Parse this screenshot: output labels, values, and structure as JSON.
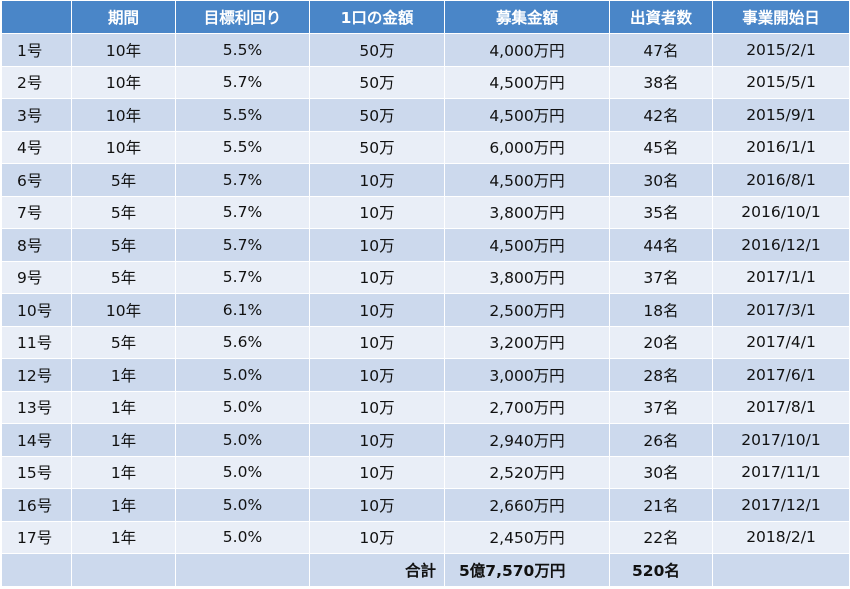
{
  "table": {
    "headers": [
      "",
      "期間",
      "目標利回り",
      "1口の金額",
      "募集金額",
      "出資者数",
      "事業開始日"
    ],
    "rows": [
      [
        "1号",
        "10年",
        "5.5%",
        "50万",
        "4,000万円",
        "47名",
        "2015/2/1"
      ],
      [
        "2号",
        "10年",
        "5.7%",
        "50万",
        "4,500万円",
        "38名",
        "2015/5/1"
      ],
      [
        "3号",
        "10年",
        "5.5%",
        "50万",
        "4,500万円",
        "42名",
        "2015/9/1"
      ],
      [
        "4号",
        "10年",
        "5.5%",
        "50万",
        "6,000万円",
        "45名",
        "2016/1/1"
      ],
      [
        "6号",
        "5年",
        "5.7%",
        "10万",
        "4,500万円",
        "30名",
        "2016/8/1"
      ],
      [
        "7号",
        "5年",
        "5.7%",
        "10万",
        "3,800万円",
        "35名",
        "2016/10/1"
      ],
      [
        "8号",
        "5年",
        "5.7%",
        "10万",
        "4,500万円",
        "44名",
        "2016/12/1"
      ],
      [
        "9号",
        "5年",
        "5.7%",
        "10万",
        "3,800万円",
        "37名",
        "2017/1/1"
      ],
      [
        "10号",
        "10年",
        "6.1%",
        "10万",
        "2,500万円",
        "18名",
        "2017/3/1"
      ],
      [
        "11号",
        "5年",
        "5.6%",
        "10万",
        "3,200万円",
        "20名",
        "2017/4/1"
      ],
      [
        "12号",
        "1年",
        "5.0%",
        "10万",
        "3,000万円",
        "28名",
        "2017/6/1"
      ],
      [
        "13号",
        "1年",
        "5.0%",
        "10万",
        "2,700万円",
        "37名",
        "2017/8/1"
      ],
      [
        "14号",
        "1年",
        "5.0%",
        "10万",
        "2,940万円",
        "26名",
        "2017/10/1"
      ],
      [
        "15号",
        "1年",
        "5.0%",
        "10万",
        "2,520万円",
        "30名",
        "2017/11/1"
      ],
      [
        "16号",
        "1年",
        "5.0%",
        "10万",
        "2,660万円",
        "21名",
        "2017/12/1"
      ],
      [
        "17号",
        "1年",
        "5.0%",
        "10万",
        "2,450万円",
        "22名",
        "2018/2/1"
      ]
    ],
    "total": {
      "label": "合計",
      "amount": "5億7,570万円",
      "investors": "520名"
    }
  },
  "colors": {
    "header_bg": "#4a86c8",
    "row_dark": "#ccd9ed",
    "row_light": "#e9eef7"
  }
}
